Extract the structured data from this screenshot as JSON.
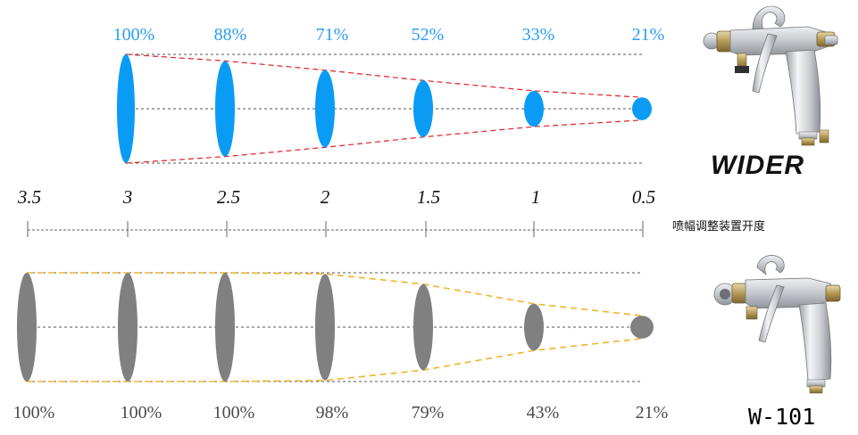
{
  "top_chart": {
    "brand": "WIDER",
    "percentages": [
      "100%",
      "88%",
      "71%",
      "52%",
      "33%",
      "21%"
    ],
    "fraction": [
      1.0,
      0.88,
      0.71,
      0.52,
      0.33,
      0.21
    ],
    "fill_color": "#0a9cf5",
    "envelope_color": "#e0202a"
  },
  "scale": {
    "labels": [
      "3.5",
      "3",
      "2.5",
      "2",
      "1.5",
      "1",
      "0.5"
    ],
    "caption": "喷幅调整装置开度"
  },
  "bottom_chart": {
    "brand": "W-101",
    "percentages": [
      "100%",
      "100%",
      "100%",
      "98%",
      "79%",
      "43%",
      "21%"
    ],
    "fraction": [
      1.0,
      1.0,
      1.0,
      0.98,
      0.79,
      0.43,
      0.21
    ],
    "fill_color": "#808080",
    "envelope_color": "#f0b429"
  }
}
